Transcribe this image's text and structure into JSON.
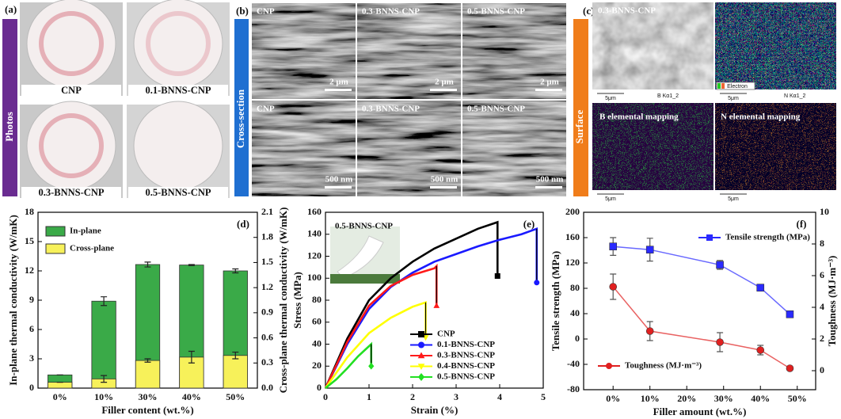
{
  "panels": {
    "a": {
      "letter": "(a)",
      "side_label": "Photos",
      "captions": [
        "CNP",
        "0.1-BNNS-CNP",
        "0.3-BNNS-CNP",
        "0.5-BNNS-CNP"
      ]
    },
    "b": {
      "letter": "(b)",
      "side_label": "Cross-section",
      "labels": [
        "CNP",
        "0.3-BNNS-CNP",
        "0.5-BNNS-CNP",
        "CNP",
        "0.3-BNNS-CNP",
        "0.5-BNNS-CNP"
      ],
      "scale_bars": [
        "2 μm",
        "2 μm",
        "2 μm",
        "500 nm",
        "500 nm",
        "500 nm"
      ]
    },
    "c": {
      "letter": "(c)",
      "side_label": "Surface",
      "image_label": "0.3-BNNS-CNP",
      "map_titles": [
        "B Kα1_2",
        "N Kα1_2"
      ],
      "legend": "Electron",
      "mapping_labels": [
        "B elemental mapping",
        "N elemental mapping"
      ],
      "scale_bars": [
        "5μm",
        "5μm",
        "5μm",
        "5μm"
      ]
    }
  },
  "chart_data": [
    {
      "type": "bar",
      "panel_label": "(d)",
      "x_label": "Filler content (wt.%)",
      "y_label": "In-plane thermal conductivity (W/mK)",
      "y2_label": "Cross-plane thermal conductivity (W/mK)",
      "categories": [
        "0%",
        "10%",
        "30%",
        "40%",
        "50%"
      ],
      "series": [
        {
          "name": "In-plane",
          "color": "#3aaa48",
          "values": [
            1.35,
            8.9,
            12.65,
            12.6,
            12.0
          ],
          "errors": [
            0,
            0.45,
            0.25,
            0.05,
            0.2
          ]
        },
        {
          "name": "Cross-plane",
          "color": "#f7f15a",
          "axis": "y2",
          "values": [
            0.07,
            0.11,
            0.33,
            0.37,
            0.39
          ],
          "errors": [
            0,
            0.04,
            0.02,
            0.07,
            0.04
          ]
        }
      ],
      "ylim": [
        0,
        18
      ],
      "yticks": [
        0,
        3,
        6,
        9,
        12,
        15,
        18
      ],
      "y2lim": [
        0,
        2.1
      ],
      "y2ticks": [
        {
          "value": 0,
          "label": "0.0"
        },
        0.3,
        0.6,
        0.9,
        1.2,
        1.5,
        1.8,
        2.1
      ],
      "legend": "upper left"
    },
    {
      "type": "line",
      "panel_label": "(e)",
      "x_label": "Strain (%)",
      "y_label": "Stress (MPa)",
      "inset_label": "0.5-BNNS-CNP",
      "series": [
        {
          "name": "CNP",
          "color": "#000000",
          "marker": "square",
          "x": [
            0,
            0.5,
            1,
            1.5,
            2,
            2.5,
            3,
            3.5,
            3.95,
            3.95
          ],
          "values": [
            0,
            45,
            80,
            100,
            115,
            127,
            136,
            145,
            151,
            102
          ]
        },
        {
          "name": "0.1-BNNS-CNP",
          "color": "#1a1aff",
          "marker": "circle",
          "x": [
            0,
            0.5,
            1,
            1.5,
            2,
            2.5,
            3,
            3.5,
            4,
            4.5,
            4.85,
            4.85
          ],
          "values": [
            0,
            40,
            72,
            92,
            105,
            115,
            122,
            129,
            135,
            140,
            145,
            96
          ]
        },
        {
          "name": "0.3-BNNS-CNP",
          "color": "#ff1a1a",
          "marker": "triangle",
          "x": [
            0,
            0.5,
            1,
            1.5,
            2,
            2.5,
            2.55,
            2.55
          ],
          "values": [
            0,
            42,
            75,
            93,
            103,
            109,
            111,
            75
          ]
        },
        {
          "name": "0.4-BNNS-CNP",
          "color": "#ffff00",
          "marker": "triangle-down",
          "x": [
            0,
            0.5,
            1,
            1.5,
            2,
            2.3,
            2.3
          ],
          "values": [
            0,
            28,
            50,
            64,
            74,
            78,
            46
          ]
        },
        {
          "name": "0.5-BNNS-CNP",
          "color": "#22e022",
          "marker": "diamond",
          "x": [
            0,
            0.25,
            0.5,
            0.75,
            1.05,
            1.05
          ],
          "values": [
            0,
            8,
            18,
            29,
            40,
            20
          ]
        }
      ],
      "xlim": [
        0,
        5
      ],
      "xticks": [
        0,
        1,
        2,
        3,
        4,
        5
      ],
      "ylim": [
        0,
        160
      ],
      "yticks": [
        0,
        20,
        40,
        60,
        80,
        100,
        120,
        140,
        160
      ],
      "legend": "lower right"
    },
    {
      "type": "line",
      "panel_label": "(f)",
      "x_label": "Filler amount (wt.%)",
      "y_label": "Tensile strength (MPa)",
      "y2_label": "Toughness (MJ·m⁻³)",
      "x": [
        0,
        10,
        29,
        40,
        48
      ],
      "series": [
        {
          "name": "Tensile strength (MPa)",
          "color": "#2a2aff",
          "marker": "square",
          "values": [
            146,
            141,
            117,
            81,
            39
          ],
          "errors": [
            14,
            18,
            7,
            3,
            2
          ]
        },
        {
          "name": "Toughness (MJ·m⁻³)",
          "color": "#e02020",
          "marker": "circle",
          "axis": "y2",
          "values": [
            5.3,
            2.5,
            1.8,
            1.3,
            0.15
          ],
          "errors": [
            0.8,
            0.6,
            0.6,
            0.3,
            0.1
          ]
        }
      ],
      "xlim": [
        -8,
        55
      ],
      "xticks": [
        {
          "value": 0,
          "label": "0%"
        },
        {
          "value": 10,
          "label": "10%"
        },
        {
          "value": 20,
          "label": "20%"
        },
        {
          "value": 30,
          "label": "30%"
        },
        {
          "value": 40,
          "label": "40%"
        },
        {
          "value": 50,
          "label": "50%"
        }
      ],
      "ylim": [
        -80,
        200
      ],
      "yticks": [
        -80,
        -40,
        0,
        40,
        80,
        120,
        160,
        200
      ],
      "y2lim": [
        -1.2,
        10
      ],
      "y2ticks": [
        0,
        2,
        4,
        6,
        8,
        10
      ]
    }
  ]
}
